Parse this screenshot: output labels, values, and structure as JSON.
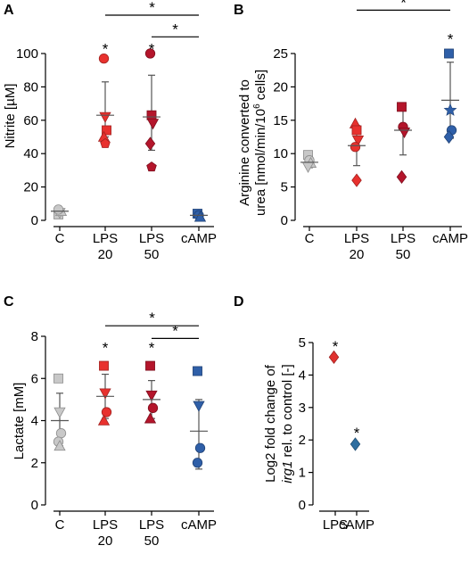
{
  "colors": {
    "control": "#c8c8c8",
    "lps20": "#e8312e",
    "lps50": "#b4152b",
    "camp": "#2f5fa8",
    "lps_single": "#e0312f",
    "camp_single": "#2e6ea0"
  },
  "chart_data": [
    {
      "panel": "A",
      "type": "scatter",
      "ylabel": "Nitrite  [µM]",
      "ylim": [
        0,
        100
      ],
      "yticks": [
        "0",
        "20",
        "40",
        "60",
        "80",
        "100"
      ],
      "categories": [
        {
          "line1": "C",
          "line2": ""
        },
        {
          "line1": "LPS",
          "line2": "20"
        },
        {
          "line1": "LPS",
          "line2": "50"
        },
        {
          "line1": "cAMP",
          "line2": ""
        }
      ],
      "series": [
        {
          "color_key": "control",
          "mean": 5.5,
          "err_low": 4,
          "err_high": 7,
          "points": [
            {
              "v": 3.5,
              "m": "square"
            },
            {
              "v": 4.5,
              "m": "triangle-down"
            },
            {
              "v": 5.5,
              "m": "triangle"
            },
            {
              "v": 6.5,
              "m": "circle"
            }
          ]
        },
        {
          "color_key": "lps20",
          "mean": 63,
          "err_low": 50,
          "err_high": 83,
          "points": [
            {
              "v": 97,
              "m": "circle"
            },
            {
              "v": 62,
              "m": "triangle-down"
            },
            {
              "v": 54,
              "m": "square"
            },
            {
              "v": 50,
              "m": "triangle"
            },
            {
              "v": 46,
              "m": "pentagon"
            }
          ]
        },
        {
          "color_key": "lps50",
          "mean": 62,
          "err_low": 42,
          "err_high": 87,
          "points": [
            {
              "v": 100,
              "m": "circle"
            },
            {
              "v": 63,
              "m": "square"
            },
            {
              "v": 58,
              "m": "triangle-down"
            },
            {
              "v": 46,
              "m": "diamond"
            },
            {
              "v": 32,
              "m": "pentagon"
            }
          ]
        },
        {
          "color_key": "camp",
          "mean": 3,
          "err_low": 1.5,
          "err_high": 4.5,
          "points": [
            {
              "v": 4,
              "m": "square"
            },
            {
              "v": 3,
              "m": "circle"
            },
            {
              "v": 2,
              "m": "triangle"
            }
          ]
        }
      ],
      "sig_stars": [
        {
          "cat": 1,
          "v": 104,
          "text": "*"
        },
        {
          "cat": 2,
          "v": 104,
          "text": "*"
        }
      ],
      "brackets": [
        {
          "from": 1,
          "to": 3,
          "v": 123,
          "text": "*"
        },
        {
          "from": 2,
          "to": 3,
          "v": 110,
          "text": "*"
        }
      ]
    },
    {
      "panel": "B",
      "type": "scatter",
      "ylabel_line1": "Arginine converted to",
      "ylabel_line2_pre": "urea [nmol/min/10",
      "ylabel_line2_sup": "6",
      "ylabel_line2_post": " cells]",
      "ylim": [
        0,
        25
      ],
      "yticks": [
        "0",
        "5",
        "10",
        "15",
        "20",
        "25"
      ],
      "categories": [
        {
          "line1": "C",
          "line2": ""
        },
        {
          "line1": "LPS",
          "line2": "20"
        },
        {
          "line1": "LPS",
          "line2": "50"
        },
        {
          "line1": "cAMP",
          "line2": ""
        }
      ],
      "series": [
        {
          "color_key": "control",
          "mean": 8.7,
          "err_low": 7.9,
          "err_high": 9.6,
          "points": [
            {
              "v": 9.8,
              "m": "square"
            },
            {
              "v": 9.0,
              "m": "circle"
            },
            {
              "v": 8.6,
              "m": "triangle"
            },
            {
              "v": 8.0,
              "m": "triangle-down"
            }
          ]
        },
        {
          "color_key": "lps20",
          "mean": 11.2,
          "err_low": 8.2,
          "err_high": 14.2,
          "points": [
            {
              "v": 14.5,
              "m": "triangle"
            },
            {
              "v": 13.5,
              "m": "square"
            },
            {
              "v": 12.0,
              "m": "triangle-down"
            },
            {
              "v": 11.0,
              "m": "circle"
            },
            {
              "v": 6.0,
              "m": "diamond"
            }
          ]
        },
        {
          "color_key": "lps50",
          "mean": 13.5,
          "err_low": 9.8,
          "err_high": 17.2,
          "points": [
            {
              "v": 17.0,
              "m": "square"
            },
            {
              "v": 14.0,
              "m": "circle"
            },
            {
              "v": 13.2,
              "m": "triangle-down"
            },
            {
              "v": 6.5,
              "m": "diamond"
            }
          ]
        },
        {
          "color_key": "camp",
          "mean": 18.0,
          "err_low": 12.3,
          "err_high": 23.7,
          "points": [
            {
              "v": 25.0,
              "m": "square"
            },
            {
              "v": 16.5,
              "m": "star"
            },
            {
              "v": 13.5,
              "m": "circle"
            },
            {
              "v": 12.5,
              "m": "diamond"
            }
          ]
        }
      ],
      "sig_stars": [
        {
          "cat": 3,
          "v": 27.5,
          "text": "*"
        }
      ],
      "brackets": [
        {
          "from": 1,
          "to": 3,
          "v": 31.5,
          "text": "*"
        }
      ]
    },
    {
      "panel": "C",
      "type": "scatter",
      "ylabel": "Lactate [mM]",
      "ylim": [
        0,
        8
      ],
      "yticks": [
        "0",
        "2",
        "4",
        "6",
        "8"
      ],
      "categories": [
        {
          "line1": "C",
          "line2": ""
        },
        {
          "line1": "LPS",
          "line2": "20"
        },
        {
          "line1": "LPS",
          "line2": "50"
        },
        {
          "line1": "cAMP",
          "line2": ""
        }
      ],
      "series": [
        {
          "color_key": "control",
          "mean": 4.0,
          "err_low": 2.8,
          "err_high": 5.3,
          "points": [
            {
              "v": 6.0,
              "m": "square"
            },
            {
              "v": 4.4,
              "m": "triangle-down"
            },
            {
              "v": 3.4,
              "m": "circle"
            },
            {
              "v": 3.0,
              "m": "circle"
            },
            {
              "v": 2.8,
              "m": "triangle"
            }
          ]
        },
        {
          "color_key": "lps20",
          "mean": 5.15,
          "err_low": 4.1,
          "err_high": 6.2,
          "points": [
            {
              "v": 6.6,
              "m": "square"
            },
            {
              "v": 5.3,
              "m": "triangle-down"
            },
            {
              "v": 4.4,
              "m": "circle"
            },
            {
              "v": 4.0,
              "m": "triangle"
            }
          ]
        },
        {
          "color_key": "lps50",
          "mean": 5.0,
          "err_low": 4.1,
          "err_high": 5.9,
          "points": [
            {
              "v": 6.6,
              "m": "square"
            },
            {
              "v": 5.2,
              "m": "triangle-down"
            },
            {
              "v": 4.6,
              "m": "circle"
            },
            {
              "v": 4.1,
              "m": "triangle"
            }
          ]
        },
        {
          "color_key": "camp",
          "mean": 3.5,
          "err_low": 1.7,
          "err_high": 5.0,
          "points": [
            {
              "v": 6.35,
              "m": "square"
            },
            {
              "v": 4.7,
              "m": "triangle-down"
            },
            {
              "v": 2.7,
              "m": "circle"
            },
            {
              "v": 2.0,
              "m": "circle"
            }
          ]
        }
      ],
      "sig_stars": [
        {
          "cat": 1,
          "v": 7.55,
          "text": "*"
        },
        {
          "cat": 2,
          "v": 7.55,
          "text": "*"
        }
      ],
      "brackets": [
        {
          "from": 1,
          "to": 3,
          "v": 8.5,
          "text": "*"
        },
        {
          "from": 2,
          "to": 3,
          "v": 7.9,
          "text": "*"
        }
      ]
    },
    {
      "panel": "D",
      "type": "scatter",
      "ylabel_line1": "Log2 fold change of",
      "ylabel_line2_italic": "irg1",
      "ylabel_line2_post": " rel. to control [-]",
      "ylim": [
        0,
        5
      ],
      "yticks": [
        "0",
        "1",
        "2",
        "3",
        "4",
        "5"
      ],
      "categories": [
        {
          "line1": "LPS",
          "line2": ""
        },
        {
          "line1": "cAMP",
          "line2": ""
        }
      ],
      "series": [
        {
          "color_key": "lps_single",
          "mean": 4.55,
          "points": [
            {
              "v": 4.55,
              "m": "diamond"
            }
          ]
        },
        {
          "color_key": "camp_single",
          "mean": 1.87,
          "points": [
            {
              "v": 1.87,
              "m": "diamond"
            }
          ]
        }
      ],
      "sig_stars": [
        {
          "cat": 0,
          "v": 4.95,
          "text": "*"
        },
        {
          "cat": 1,
          "v": 2.28,
          "text": "*"
        }
      ],
      "brackets": []
    }
  ]
}
